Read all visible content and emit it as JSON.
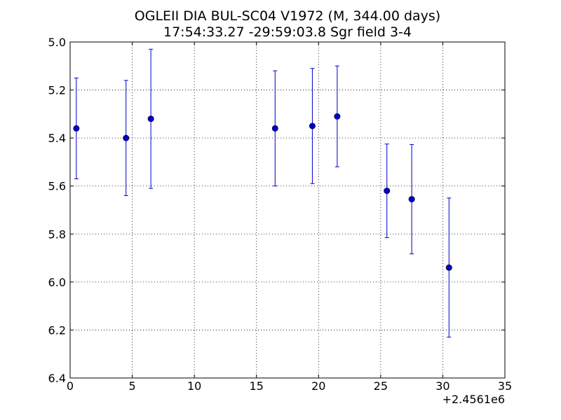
{
  "chart_data": {
    "type": "scatter",
    "title_line1": "OGLEII DIA BUL-SC04 V1972  (M, 344.00 days)",
    "title_line2": "17:54:33.27 -29:59:03.8 Sgr field 3-4",
    "xlabel": "",
    "ylabel": "",
    "x_offset_label": "+2.4561e6",
    "xlim": [
      0,
      35
    ],
    "ylim": [
      6.4,
      5.0
    ],
    "y_inverted": true,
    "x_ticks": [
      0,
      5,
      10,
      15,
      20,
      25,
      30,
      35
    ],
    "x_tick_labels": [
      "0",
      "5",
      "10",
      "15",
      "20",
      "25",
      "30",
      "35"
    ],
    "y_ticks": [
      5.0,
      5.2,
      5.4,
      5.6,
      5.8,
      6.0,
      6.2,
      6.4
    ],
    "y_tick_labels": [
      "5.0",
      "5.2",
      "5.4",
      "5.6",
      "5.8",
      "6.0",
      "6.2",
      "6.4"
    ],
    "grid": true,
    "color": "#0000cc",
    "points": [
      {
        "x": 0.5,
        "y": 5.36,
        "yerr": 0.21
      },
      {
        "x": 4.5,
        "y": 5.4,
        "yerr": 0.24
      },
      {
        "x": 6.5,
        "y": 5.32,
        "yerr": 0.29
      },
      {
        "x": 16.5,
        "y": 5.36,
        "yerr": 0.24
      },
      {
        "x": 19.5,
        "y": 5.35,
        "yerr": 0.24
      },
      {
        "x": 21.5,
        "y": 5.31,
        "yerr": 0.21
      },
      {
        "x": 25.5,
        "y": 5.62,
        "yerr": 0.195
      },
      {
        "x": 27.5,
        "y": 5.655,
        "yerr": 0.228
      },
      {
        "x": 30.5,
        "y": 5.94,
        "yerr": 0.29
      }
    ]
  }
}
